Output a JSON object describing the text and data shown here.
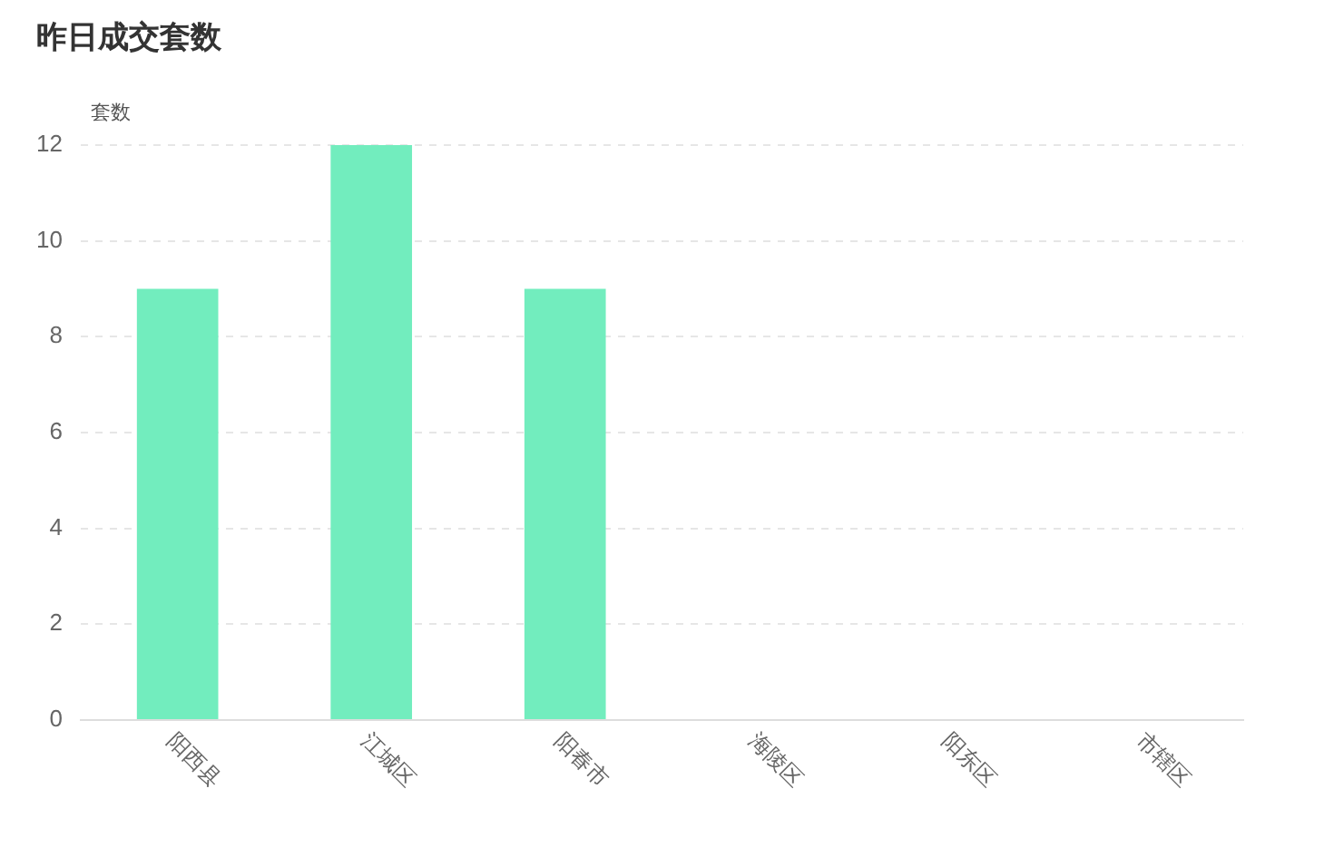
{
  "chart_data": {
    "type": "bar",
    "title": "昨日成交套数",
    "ylabel": "套数",
    "categories": [
      "阳西县",
      "江城区",
      "阳春市",
      "海陵区",
      "阳东区",
      "市辖区"
    ],
    "values": [
      9,
      12,
      9,
      0,
      0,
      0
    ],
    "color": "#72edbe",
    "ylim": [
      0,
      12
    ],
    "yticks": [
      0,
      2,
      4,
      6,
      8,
      10,
      12
    ],
    "grid": "y",
    "legend": false
  }
}
